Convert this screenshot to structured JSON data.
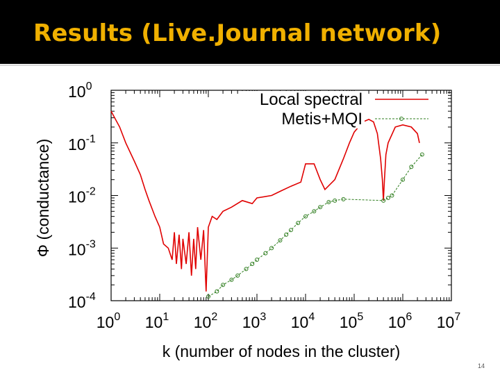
{
  "slide": {
    "title": "Results (Live.Journal network)",
    "page_number": "14",
    "colors": {
      "title_bar": "#000000",
      "title_text": "#f0b000"
    }
  },
  "chart_data": {
    "type": "line",
    "title": "",
    "xlabel": "k (number of nodes in the cluster)",
    "ylabel": "Φ (conductance)",
    "x_scale": "log",
    "y_scale": "log",
    "xlim": [
      1,
      10000000
    ],
    "ylim": [
      0.0001,
      1
    ],
    "grid": false,
    "legend_position": "top-right",
    "x_ticks": [
      {
        "base": "10",
        "exp": "0"
      },
      {
        "base": "10",
        "exp": "1"
      },
      {
        "base": "10",
        "exp": "2"
      },
      {
        "base": "10",
        "exp": "3"
      },
      {
        "base": "10",
        "exp": "4"
      },
      {
        "base": "10",
        "exp": "5"
      },
      {
        "base": "10",
        "exp": "6"
      },
      {
        "base": "10",
        "exp": "7"
      }
    ],
    "y_ticks": [
      {
        "base": "10",
        "exp": "0"
      },
      {
        "base": "10",
        "exp": "-1"
      },
      {
        "base": "10",
        "exp": "-2"
      },
      {
        "base": "10",
        "exp": "-3"
      },
      {
        "base": "10",
        "exp": "-4"
      }
    ],
    "series": [
      {
        "name": "Local spectral",
        "color": "#e00000",
        "style": "solid",
        "points": [
          [
            1,
            0.4
          ],
          [
            1.5,
            0.2
          ],
          [
            2,
            0.1
          ],
          [
            3,
            0.045
          ],
          [
            4,
            0.025
          ],
          [
            5,
            0.013
          ],
          [
            6,
            0.008
          ],
          [
            8,
            0.004
          ],
          [
            10,
            0.0025
          ],
          [
            12,
            0.0012
          ],
          [
            15,
            0.001
          ],
          [
            18,
            0.0006
          ],
          [
            20,
            0.002
          ],
          [
            22,
            0.0005
          ],
          [
            25,
            0.0018
          ],
          [
            28,
            0.0004
          ],
          [
            30,
            0.0015
          ],
          [
            35,
            0.0005
          ],
          [
            40,
            0.002
          ],
          [
            45,
            0.0003
          ],
          [
            50,
            0.0015
          ],
          [
            55,
            0.0004
          ],
          [
            60,
            0.0025
          ],
          [
            70,
            0.0006
          ],
          [
            80,
            0.0022
          ],
          [
            90,
            0.00015
          ],
          [
            100,
            0.0025
          ],
          [
            120,
            0.004
          ],
          [
            150,
            0.0035
          ],
          [
            200,
            0.005
          ],
          [
            300,
            0.006
          ],
          [
            500,
            0.008
          ],
          [
            800,
            0.007
          ],
          [
            1000,
            0.009
          ],
          [
            2000,
            0.01
          ],
          [
            3000,
            0.012
          ],
          [
            5000,
            0.015
          ],
          [
            8000,
            0.018
          ],
          [
            10000,
            0.04
          ],
          [
            15000,
            0.04
          ],
          [
            20000,
            0.02
          ],
          [
            25000,
            0.013
          ],
          [
            40000,
            0.02
          ],
          [
            60000,
            0.05
          ],
          [
            80000,
            0.1
          ],
          [
            100000,
            0.16
          ],
          [
            150000,
            0.25
          ],
          [
            200000,
            0.28
          ],
          [
            250000,
            0.25
          ],
          [
            300000,
            0.15
          ],
          [
            350000,
            0.05
          ],
          [
            380000,
            0.02
          ],
          [
            400000,
            0.008
          ],
          [
            420000,
            0.02
          ],
          [
            450000,
            0.06
          ],
          [
            500000,
            0.1
          ],
          [
            700000,
            0.2
          ],
          [
            1000000,
            0.22
          ],
          [
            1500000,
            0.2
          ],
          [
            2000000,
            0.15
          ],
          [
            2200000,
            0.1
          ]
        ]
      },
      {
        "name": "Metis+MQI",
        "color": "#2e7d1e",
        "style": "dashed",
        "marker": "circle",
        "points": [
          [
            100,
            0.00012
          ],
          [
            150,
            0.00015
          ],
          [
            200,
            0.0002
          ],
          [
            300,
            0.00025
          ],
          [
            400,
            0.0003
          ],
          [
            600,
            0.0004
          ],
          [
            800,
            0.0005
          ],
          [
            1000,
            0.0006
          ],
          [
            1500,
            0.0008
          ],
          [
            2000,
            0.001
          ],
          [
            3000,
            0.0014
          ],
          [
            4000,
            0.0018
          ],
          [
            5000,
            0.0022
          ],
          [
            7000,
            0.003
          ],
          [
            10000,
            0.004
          ],
          [
            15000,
            0.005
          ],
          [
            20000,
            0.006
          ],
          [
            30000,
            0.0075
          ],
          [
            40000,
            0.008
          ],
          [
            60000,
            0.0085
          ],
          [
            400000,
            0.008
          ],
          [
            500000,
            0.009
          ],
          [
            600000,
            0.01
          ],
          [
            1000000,
            0.02
          ],
          [
            1500000,
            0.035
          ],
          [
            2500000,
            0.06
          ]
        ]
      }
    ]
  }
}
